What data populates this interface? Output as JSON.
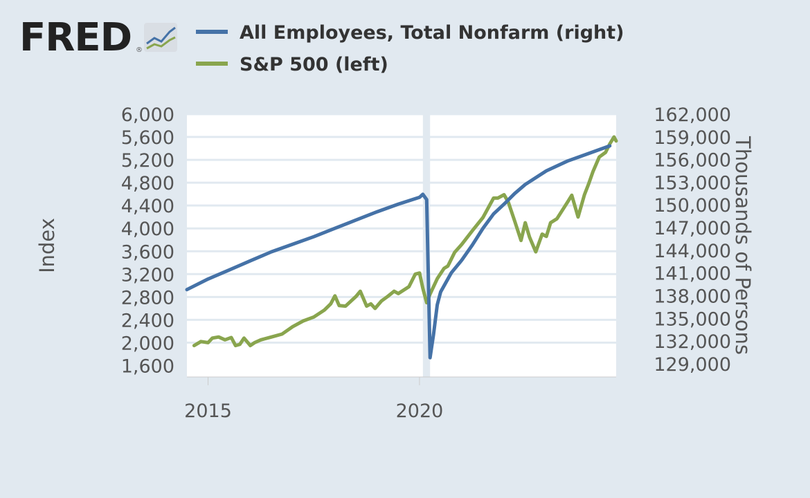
{
  "logo": {
    "text": "FRED",
    "icon": "chart-line-icon"
  },
  "colors": {
    "page_bg": "#e1e9f0",
    "plot_bg": "#ffffff",
    "grid": "#e1e9f0",
    "employees": "#4572a7",
    "sp500": "#89a54e",
    "recession": "#e1e9f0",
    "logo": "#222222"
  },
  "chart_data": {
    "type": "line",
    "title": "",
    "x_ticks": [
      {
        "label": "2015",
        "year": 2015.0
      },
      {
        "label": "2020",
        "year": 2020.0
      }
    ],
    "xlim": [
      2014.5,
      2024.65
    ],
    "recession": {
      "start": 2020.08,
      "end": 2020.25
    },
    "left_axis": {
      "title": "Index",
      "ylim": [
        1400,
        6000
      ],
      "ticks": [
        1600,
        2000,
        2400,
        2800,
        3200,
        3600,
        4000,
        4400,
        4800,
        5200,
        5600,
        6000
      ],
      "tick_labels": [
        "1,600",
        "2,000",
        "2,400",
        "2,800",
        "3,200",
        "3,600",
        "4,000",
        "4,400",
        "4,800",
        "5,200",
        "5,600",
        "6,000"
      ]
    },
    "right_axis": {
      "title": "Thousands of Persons",
      "ylim": [
        127250,
        162000
      ],
      "ticks": [
        129000,
        132000,
        135000,
        138000,
        141000,
        144000,
        147000,
        150000,
        153000,
        156000,
        159000,
        162000
      ],
      "tick_labels": [
        "129,000",
        "132,000",
        "135,000",
        "138,000",
        "141,000",
        "144,000",
        "147,000",
        "150,000",
        "153,000",
        "156,000",
        "159,000",
        "162,000"
      ]
    },
    "series": [
      {
        "name": "All Employees, Total Nonfarm (right)",
        "axis": "right",
        "x": [
          2014.5,
          2015.0,
          2015.5,
          2016.0,
          2016.5,
          2017.0,
          2017.5,
          2018.0,
          2018.5,
          2019.0,
          2019.5,
          2020.0,
          2020.08,
          2020.17,
          2020.25,
          2020.33,
          2020.42,
          2020.5,
          2020.75,
          2021.0,
          2021.25,
          2021.5,
          2021.75,
          2022.0,
          2022.25,
          2022.5,
          2022.75,
          2023.0,
          2023.5,
          2024.0,
          2024.5
        ],
        "values": [
          138800,
          140200,
          141400,
          142600,
          143800,
          144800,
          145800,
          146900,
          148000,
          149100,
          150100,
          151000,
          151400,
          150700,
          129800,
          132800,
          136800,
          138500,
          141000,
          142700,
          144700,
          146900,
          148800,
          150100,
          151500,
          152700,
          153600,
          154500,
          155800,
          156800,
          157800
        ]
      },
      {
        "name": "S&P 500 (left)",
        "axis": "left",
        "x": [
          2014.67,
          2014.83,
          2015.0,
          2015.1,
          2015.25,
          2015.4,
          2015.55,
          2015.65,
          2015.75,
          2015.85,
          2016.0,
          2016.1,
          2016.25,
          2016.5,
          2016.75,
          2017.0,
          2017.25,
          2017.5,
          2017.75,
          2017.9,
          2018.0,
          2018.1,
          2018.25,
          2018.5,
          2018.6,
          2018.75,
          2018.85,
          2018.95,
          2019.1,
          2019.25,
          2019.4,
          2019.5,
          2019.75,
          2019.9,
          2020.0,
          2020.08,
          2020.17,
          2020.25,
          2020.42,
          2020.58,
          2020.67,
          2020.83,
          2021.0,
          2021.25,
          2021.5,
          2021.75,
          2021.85,
          2022.0,
          2022.1,
          2022.25,
          2022.4,
          2022.5,
          2022.6,
          2022.75,
          2022.9,
          2023.0,
          2023.1,
          2023.25,
          2023.5,
          2023.6,
          2023.75,
          2023.9,
          2024.0,
          2024.1,
          2024.25,
          2024.4,
          2024.5,
          2024.6,
          2024.65
        ],
        "values": [
          1950,
          2020,
          2000,
          2080,
          2100,
          2050,
          2090,
          1950,
          1970,
          2080,
          1950,
          2000,
          2050,
          2100,
          2150,
          2280,
          2380,
          2450,
          2570,
          2680,
          2820,
          2650,
          2640,
          2810,
          2900,
          2640,
          2680,
          2600,
          2730,
          2810,
          2900,
          2860,
          2980,
          3200,
          3220,
          2950,
          2700,
          2850,
          3120,
          3300,
          3340,
          3580,
          3720,
          3960,
          4190,
          4530,
          4530,
          4590,
          4460,
          4130,
          3790,
          4100,
          3850,
          3590,
          3900,
          3860,
          4100,
          4170,
          4460,
          4580,
          4200,
          4590,
          4780,
          4990,
          5250,
          5330,
          5480,
          5600,
          5530
        ]
      }
    ]
  },
  "legend": [
    {
      "label": "All Employees, Total Nonfarm (right)",
      "color_key": "employees"
    },
    {
      "label": "S&P 500 (left)",
      "color_key": "sp500"
    }
  ]
}
